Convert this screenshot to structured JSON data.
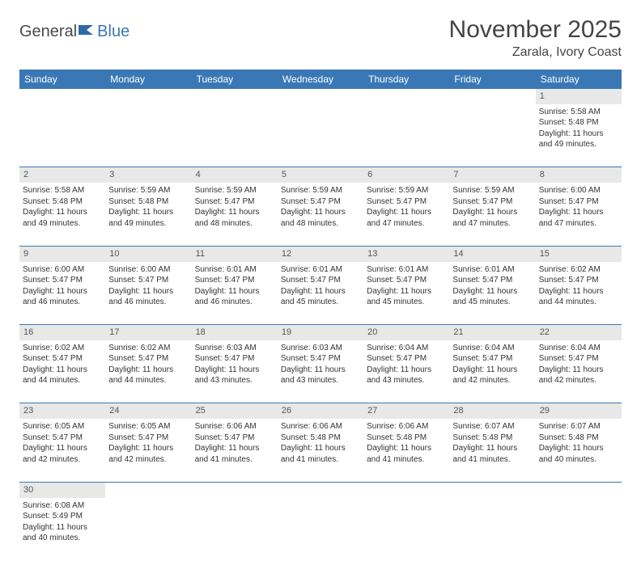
{
  "logo": {
    "part1": "General",
    "part2": "Blue"
  },
  "title": "November 2025",
  "location": "Zarala, Ivory Coast",
  "colors": {
    "header_bg": "#3a78b5",
    "header_text": "#ffffff",
    "daynum_bg": "#e8e8e8",
    "row_border": "#3a78b5",
    "page_bg": "#ffffff",
    "text": "#333333",
    "logo_gray": "#4a4a4a",
    "logo_blue": "#3a78b5"
  },
  "typography": {
    "title_fontsize": 30,
    "location_fontsize": 16,
    "weekday_fontsize": 12,
    "daynum_fontsize": 11,
    "cell_fontsize": 10
  },
  "layout": {
    "columns": 7,
    "first_weekday_index": 6
  },
  "weekdays": [
    "Sunday",
    "Monday",
    "Tuesday",
    "Wednesday",
    "Thursday",
    "Friday",
    "Saturday"
  ],
  "days": [
    {
      "n": 1,
      "sunrise": "5:58 AM",
      "sunset": "5:48 PM",
      "daylight": "11 hours and 49 minutes."
    },
    {
      "n": 2,
      "sunrise": "5:58 AM",
      "sunset": "5:48 PM",
      "daylight": "11 hours and 49 minutes."
    },
    {
      "n": 3,
      "sunrise": "5:59 AM",
      "sunset": "5:48 PM",
      "daylight": "11 hours and 49 minutes."
    },
    {
      "n": 4,
      "sunrise": "5:59 AM",
      "sunset": "5:47 PM",
      "daylight": "11 hours and 48 minutes."
    },
    {
      "n": 5,
      "sunrise": "5:59 AM",
      "sunset": "5:47 PM",
      "daylight": "11 hours and 48 minutes."
    },
    {
      "n": 6,
      "sunrise": "5:59 AM",
      "sunset": "5:47 PM",
      "daylight": "11 hours and 47 minutes."
    },
    {
      "n": 7,
      "sunrise": "5:59 AM",
      "sunset": "5:47 PM",
      "daylight": "11 hours and 47 minutes."
    },
    {
      "n": 8,
      "sunrise": "6:00 AM",
      "sunset": "5:47 PM",
      "daylight": "11 hours and 47 minutes."
    },
    {
      "n": 9,
      "sunrise": "6:00 AM",
      "sunset": "5:47 PM",
      "daylight": "11 hours and 46 minutes."
    },
    {
      "n": 10,
      "sunrise": "6:00 AM",
      "sunset": "5:47 PM",
      "daylight": "11 hours and 46 minutes."
    },
    {
      "n": 11,
      "sunrise": "6:01 AM",
      "sunset": "5:47 PM",
      "daylight": "11 hours and 46 minutes."
    },
    {
      "n": 12,
      "sunrise": "6:01 AM",
      "sunset": "5:47 PM",
      "daylight": "11 hours and 45 minutes."
    },
    {
      "n": 13,
      "sunrise": "6:01 AM",
      "sunset": "5:47 PM",
      "daylight": "11 hours and 45 minutes."
    },
    {
      "n": 14,
      "sunrise": "6:01 AM",
      "sunset": "5:47 PM",
      "daylight": "11 hours and 45 minutes."
    },
    {
      "n": 15,
      "sunrise": "6:02 AM",
      "sunset": "5:47 PM",
      "daylight": "11 hours and 44 minutes."
    },
    {
      "n": 16,
      "sunrise": "6:02 AM",
      "sunset": "5:47 PM",
      "daylight": "11 hours and 44 minutes."
    },
    {
      "n": 17,
      "sunrise": "6:02 AM",
      "sunset": "5:47 PM",
      "daylight": "11 hours and 44 minutes."
    },
    {
      "n": 18,
      "sunrise": "6:03 AM",
      "sunset": "5:47 PM",
      "daylight": "11 hours and 43 minutes."
    },
    {
      "n": 19,
      "sunrise": "6:03 AM",
      "sunset": "5:47 PM",
      "daylight": "11 hours and 43 minutes."
    },
    {
      "n": 20,
      "sunrise": "6:04 AM",
      "sunset": "5:47 PM",
      "daylight": "11 hours and 43 minutes."
    },
    {
      "n": 21,
      "sunrise": "6:04 AM",
      "sunset": "5:47 PM",
      "daylight": "11 hours and 42 minutes."
    },
    {
      "n": 22,
      "sunrise": "6:04 AM",
      "sunset": "5:47 PM",
      "daylight": "11 hours and 42 minutes."
    },
    {
      "n": 23,
      "sunrise": "6:05 AM",
      "sunset": "5:47 PM",
      "daylight": "11 hours and 42 minutes."
    },
    {
      "n": 24,
      "sunrise": "6:05 AM",
      "sunset": "5:47 PM",
      "daylight": "11 hours and 42 minutes."
    },
    {
      "n": 25,
      "sunrise": "6:06 AM",
      "sunset": "5:47 PM",
      "daylight": "11 hours and 41 minutes."
    },
    {
      "n": 26,
      "sunrise": "6:06 AM",
      "sunset": "5:48 PM",
      "daylight": "11 hours and 41 minutes."
    },
    {
      "n": 27,
      "sunrise": "6:06 AM",
      "sunset": "5:48 PM",
      "daylight": "11 hours and 41 minutes."
    },
    {
      "n": 28,
      "sunrise": "6:07 AM",
      "sunset": "5:48 PM",
      "daylight": "11 hours and 41 minutes."
    },
    {
      "n": 29,
      "sunrise": "6:07 AM",
      "sunset": "5:48 PM",
      "daylight": "11 hours and 40 minutes."
    },
    {
      "n": 30,
      "sunrise": "6:08 AM",
      "sunset": "5:49 PM",
      "daylight": "11 hours and 40 minutes."
    }
  ],
  "labels": {
    "sunrise": "Sunrise:",
    "sunset": "Sunset:",
    "daylight": "Daylight:"
  }
}
